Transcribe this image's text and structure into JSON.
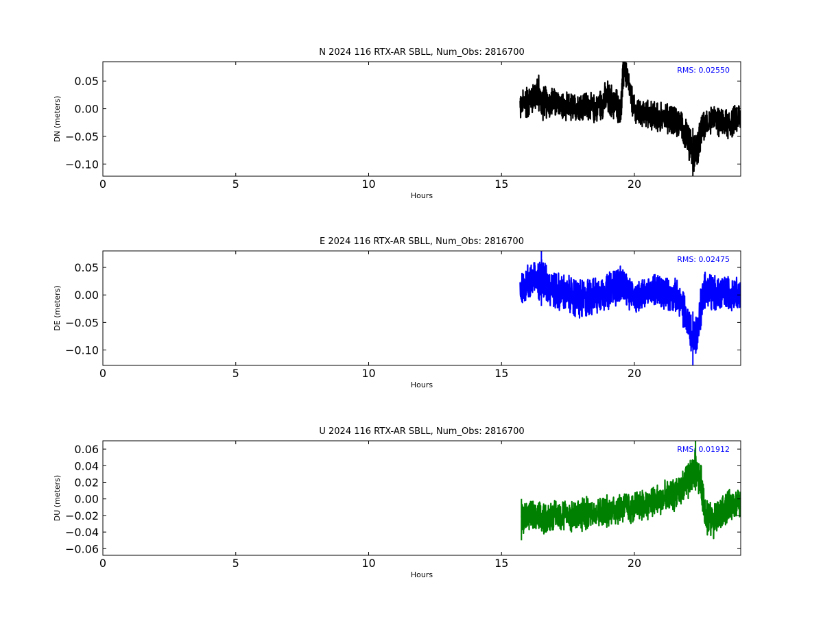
{
  "chart_data": [
    {
      "type": "line",
      "title": "N 2024 116 RTX-AR  SBLL, Num_Obs: 2816700",
      "xlabel": "Hours",
      "ylabel": "DN (meters)",
      "xlim": [
        0,
        24
      ],
      "ylim": [
        -0.122,
        0.085
      ],
      "xticks": [
        0,
        5,
        10,
        15,
        20
      ],
      "xtick_labels": [
        "0",
        "5",
        "10",
        "15",
        "20"
      ],
      "yticks": [
        0.05,
        0.0,
        -0.05,
        -0.1
      ],
      "ytick_labels": [
        "0.05",
        "0.00",
        "−0.05",
        "−0.10"
      ],
      "color": "#000000",
      "annotation": "RMS:  0.02550",
      "annotation_color": "#0000ff",
      "series": [
        {
          "x": [
            15.7,
            16.0,
            16.4,
            16.5,
            17.0,
            17.5,
            18.0,
            18.5,
            19.0,
            19.5,
            19.6,
            20.0,
            20.5,
            21.0,
            21.5,
            21.8,
            22.0,
            22.2,
            22.4,
            22.6,
            23.0,
            23.5,
            24.0
          ],
          "y": [
            0.005,
            0.015,
            0.03,
            0.01,
            0.012,
            0.0,
            0.005,
            0.0,
            0.02,
            0.0,
            0.08,
            -0.005,
            -0.01,
            -0.015,
            -0.02,
            -0.03,
            -0.05,
            -0.08,
            -0.07,
            -0.03,
            -0.02,
            -0.03,
            -0.015
          ],
          "band": [
            0.035,
            0.04,
            0.045,
            0.04,
            0.035,
            0.035,
            0.035,
            0.035,
            0.04,
            0.04,
            0.04,
            0.035,
            0.035,
            0.035,
            0.035,
            0.04,
            0.045,
            0.045,
            0.045,
            0.04,
            0.035,
            0.035,
            0.035
          ]
        }
      ]
    },
    {
      "type": "line",
      "title": "E 2024 116 RTX-AR  SBLL, Num_Obs: 2816700",
      "xlabel": "Hours",
      "ylabel": "DE (meters)",
      "xlim": [
        0,
        24
      ],
      "ylim": [
        -0.128,
        0.08
      ],
      "xticks": [
        0,
        5,
        10,
        15,
        20
      ],
      "xtick_labels": [
        "0",
        "5",
        "10",
        "15",
        "20"
      ],
      "yticks": [
        0.05,
        0.0,
        -0.05,
        -0.1
      ],
      "ytick_labels": [
        "0.05",
        "0.00",
        "−0.05",
        "−0.10"
      ],
      "color": "#0000ff",
      "annotation": "RMS:  0.02475",
      "annotation_color": "#0000ff",
      "series": [
        {
          "x": [
            15.7,
            16.0,
            16.5,
            17.0,
            17.5,
            18.0,
            18.5,
            19.0,
            19.5,
            20.0,
            20.5,
            21.0,
            21.5,
            21.8,
            22.0,
            22.2,
            22.4,
            22.6,
            23.0,
            23.5,
            24.0
          ],
          "y": [
            0.01,
            0.025,
            0.03,
            0.01,
            0.0,
            -0.01,
            0.0,
            0.005,
            0.02,
            -0.005,
            0.01,
            0.005,
            0.0,
            -0.02,
            -0.05,
            -0.08,
            -0.06,
            0.01,
            0.0,
            0.005,
            0.0
          ],
          "band": [
            0.04,
            0.045,
            0.05,
            0.045,
            0.045,
            0.05,
            0.045,
            0.045,
            0.045,
            0.04,
            0.04,
            0.04,
            0.04,
            0.045,
            0.05,
            0.05,
            0.05,
            0.05,
            0.045,
            0.04,
            0.04
          ]
        }
      ]
    },
    {
      "type": "line",
      "title": "U 2024 116 RTX-AR  SBLL, Num_Obs: 2816700",
      "xlabel": "Hours",
      "ylabel": "DU (meters)",
      "xlim": [
        0,
        24
      ],
      "ylim": [
        -0.068,
        0.07
      ],
      "xticks": [
        0,
        5,
        10,
        15,
        20
      ],
      "xtick_labels": [
        "0",
        "5",
        "10",
        "15",
        "20"
      ],
      "yticks": [
        0.06,
        0.04,
        0.02,
        0.0,
        -0.02,
        -0.04,
        -0.06
      ],
      "ytick_labels": [
        "0.06",
        "0.04",
        "0.02",
        "0.00",
        "−0.02",
        "−0.04",
        "−0.06"
      ],
      "color": "#008000",
      "annotation": "RMS:  0.01912",
      "annotation_color": "#0000ff",
      "series": [
        {
          "x": [
            15.75,
            16.0,
            16.5,
            17.0,
            17.5,
            18.0,
            18.5,
            19.0,
            19.5,
            20.0,
            20.5,
            21.0,
            21.5,
            22.0,
            22.3,
            22.5,
            22.7,
            23.0,
            23.5,
            24.0
          ],
          "y": [
            -0.025,
            -0.02,
            -0.025,
            -0.02,
            -0.02,
            -0.02,
            -0.015,
            -0.015,
            -0.01,
            -0.01,
            -0.005,
            0.0,
            0.005,
            0.02,
            0.04,
            0.02,
            -0.02,
            -0.025,
            -0.01,
            -0.005
          ],
          "band": [
            0.025,
            0.025,
            0.025,
            0.025,
            0.025,
            0.028,
            0.025,
            0.025,
            0.025,
            0.025,
            0.025,
            0.025,
            0.025,
            0.03,
            0.03,
            0.03,
            0.03,
            0.028,
            0.025,
            0.025
          ]
        }
      ]
    }
  ]
}
